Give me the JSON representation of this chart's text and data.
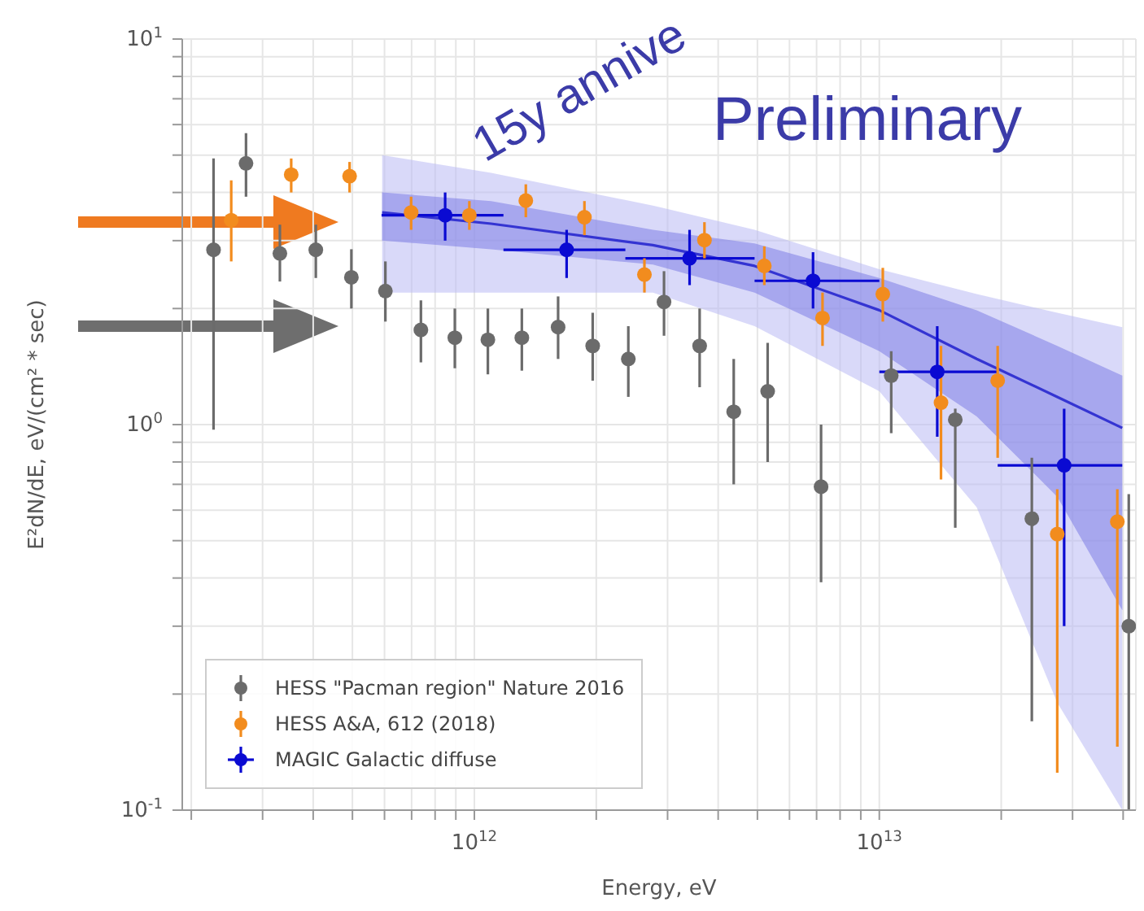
{
  "chart_data": {
    "type": "scatter",
    "xlabel": "Energy, eV",
    "ylabel": "E²dN/dE, eV/(cm² * sec)",
    "annotations": [
      "15y annive",
      "Preliminary"
    ],
    "log": "xy",
    "grid": true,
    "legend": "bottom left",
    "xlim": [
      190000000000.0,
      43000000000000.0
    ],
    "ylim": [
      0.1,
      10
    ],
    "xticks": [
      {
        "value": 200000000000.0,
        "label": null
      },
      {
        "value": 300000000000.0,
        "label": null
      },
      {
        "value": 400000000000.0,
        "label": null
      },
      {
        "value": 500000000000.0,
        "label": null
      },
      {
        "value": 600000000000.0,
        "label": null
      },
      {
        "value": 700000000000.0,
        "label": null
      },
      {
        "value": 800000000000.0,
        "label": null
      },
      {
        "value": 900000000000.0,
        "label": null
      },
      {
        "value": 1000000000000.0,
        "label": "10$^{12}$"
      },
      {
        "value": 2000000000000.0,
        "label": null
      },
      {
        "value": 3000000000000.0,
        "label": null
      },
      {
        "value": 4000000000000.0,
        "label": null
      },
      {
        "value": 5000000000000.0,
        "label": null
      },
      {
        "value": 6000000000000.0,
        "label": null
      },
      {
        "value": 7000000000000.0,
        "label": null
      },
      {
        "value": 8000000000000.0,
        "label": null
      },
      {
        "value": 9000000000000.0,
        "label": null
      },
      {
        "value": 10000000000000.0,
        "label": "10$^{13}$"
      },
      {
        "value": 20000000000000.0,
        "label": null
      },
      {
        "value": 30000000000000.0,
        "label": null
      },
      {
        "value": 40000000000000.0,
        "label": null
      }
    ],
    "yticks": [
      {
        "value": 0.1,
        "label": "10$^{-1}$"
      },
      {
        "value": 0.2,
        "label": null
      },
      {
        "value": 0.3,
        "label": null
      },
      {
        "value": 0.4,
        "label": null
      },
      {
        "value": 0.5,
        "label": null
      },
      {
        "value": 0.6,
        "label": null
      },
      {
        "value": 0.7,
        "label": null
      },
      {
        "value": 0.8,
        "label": null
      },
      {
        "value": 0.9,
        "label": null
      },
      {
        "value": 1,
        "label": "10$^{0}$"
      },
      {
        "value": 2,
        "label": null
      },
      {
        "value": 3,
        "label": null
      },
      {
        "value": 4,
        "label": null
      },
      {
        "value": 5,
        "label": null
      },
      {
        "value": 6,
        "label": null
      },
      {
        "value": 7,
        "label": null
      },
      {
        "value": 8,
        "label": null
      },
      {
        "value": 9,
        "label": null
      },
      {
        "value": 10,
        "label": "10$^{1}$"
      }
    ],
    "series": [
      {
        "name": "HESS \"Pacman region\" Nature 2016",
        "marker": "circle",
        "color": "#6b6b6b",
        "x": [
          227000000000.0,
          273000000000.0,
          331000000000.0,
          406000000000.0,
          497000000000.0,
          603000000000.0,
          738000000000.0,
          895000000000.0,
          1080000000000.0,
          1310000000000.0,
          1610000000000.0,
          1960000000000.0,
          2400000000000.0,
          2940000000000.0,
          3600000000000.0,
          4370000000000.0,
          5300000000000.0,
          7180000000000.0,
          10700000000000.0,
          15400000000000.0,
          23800000000000.0,
          41300000000000.0
        ],
        "values": [
          2.84,
          4.76,
          2.78,
          2.84,
          2.41,
          2.22,
          1.76,
          1.68,
          1.66,
          1.68,
          1.79,
          1.6,
          1.48,
          2.08,
          1.6,
          1.08,
          1.22,
          0.69,
          1.34,
          1.03,
          0.57,
          0.3
        ],
        "errors": [
          [
            0.97,
            4.9
          ],
          [
            3.9,
            5.7
          ],
          [
            2.35,
            3.3
          ],
          [
            2.4,
            3.3
          ],
          [
            2.0,
            2.85
          ],
          [
            1.85,
            2.65
          ],
          [
            1.45,
            2.1
          ],
          [
            1.4,
            2.0
          ],
          [
            1.35,
            2.0
          ],
          [
            1.38,
            2.0
          ],
          [
            1.48,
            2.15
          ],
          [
            1.3,
            1.95
          ],
          [
            1.18,
            1.8
          ],
          [
            1.7,
            2.5
          ],
          [
            1.25,
            2.0
          ],
          [
            0.7,
            1.48
          ],
          [
            0.8,
            1.63
          ],
          [
            0.39,
            1.0
          ],
          [
            0.95,
            1.55
          ],
          [
            0.54,
            1.1
          ],
          [
            0.17,
            0.82
          ],
          [
            0.1,
            0.66
          ]
        ]
      },
      {
        "name": "HESS A&A, 612 (2018)",
        "marker": "circle",
        "color": "#f28c1e",
        "x": [
          251000000000.0,
          353000000000.0,
          492000000000.0,
          698000000000.0,
          972000000000.0,
          1340000000000.0,
          1870000000000.0,
          2630000000000.0,
          3700000000000.0,
          5200000000000.0,
          7240000000000.0,
          10200000000000.0,
          14200000000000.0,
          19600000000000.0,
          27500000000000.0,
          38700000000000.0
        ],
        "values": [
          3.39,
          4.45,
          4.41,
          3.55,
          3.49,
          3.81,
          3.45,
          2.45,
          3.01,
          2.58,
          1.89,
          2.18,
          1.14,
          1.3,
          0.52,
          0.56
        ],
        "errors": [
          [
            2.65,
            4.3
          ],
          [
            4.0,
            4.9
          ],
          [
            4.0,
            4.8
          ],
          [
            3.2,
            3.9
          ],
          [
            3.2,
            3.8
          ],
          [
            3.45,
            4.2
          ],
          [
            3.1,
            3.8
          ],
          [
            2.2,
            2.7
          ],
          [
            2.7,
            3.35
          ],
          [
            2.3,
            2.9
          ],
          [
            1.6,
            2.2
          ],
          [
            1.85,
            2.55
          ],
          [
            0.72,
            1.6
          ],
          [
            0.82,
            1.6
          ],
          [
            0.125,
            0.68
          ],
          [
            0.146,
            0.68
          ]
        ]
      },
      {
        "name": "MAGIC Galactic diffuse",
        "marker": "circle",
        "color": "#0a0ad2",
        "x": [
          847000000000.0,
          1690000000000.0,
          3400000000000.0,
          6860000000000.0,
          13900000000000.0,
          28600000000000.0
        ],
        "values": [
          3.49,
          2.84,
          2.7,
          2.36,
          1.37,
          0.784
        ],
        "errors": [
          [
            3.0,
            4.0
          ],
          [
            2.4,
            3.2
          ],
          [
            2.3,
            3.2
          ],
          [
            2.0,
            2.8
          ],
          [
            0.93,
            1.8
          ],
          [
            0.3,
            1.1
          ]
        ],
        "xerrors": [
          [
            590000000000.0,
            1180000000000.0
          ],
          [
            1180000000000.0,
            2360000000000.0
          ],
          [
            2360000000000.0,
            4920000000000.0
          ],
          [
            4920000000000.0,
            10000000000000.0
          ],
          [
            10000000000000.0,
            19600000000000.0
          ],
          [
            19600000000000.0,
            39800000000000.0
          ]
        ]
      },
      {
        "type": "line",
        "color": "#b9b9f4",
        "x": [
          592000000000.0,
          1100000000000.0,
          2760000000000.0,
          4920000000000.0,
          10000000000000.0,
          17400000000000.0,
          27500000000000.0,
          39800000000000.0
        ],
        "values": [
          null,
          null,
          null,
          null,
          null,
          null,
          null,
          null
        ],
        "lower": [
          2.2,
          2.2,
          2.2,
          1.8,
          1.22,
          0.61,
          0.19,
          0.1
        ],
        "upper": [
          5.0,
          4.5,
          3.7,
          3.2,
          2.53,
          2.18,
          1.95,
          1.79
        ]
      },
      {
        "type": "line",
        "color": "#3434d2",
        "x": [
          592000000000.0,
          1100000000000.0,
          2760000000000.0,
          4920000000000.0,
          10000000000000.0,
          17400000000000.0,
          27500000000000.0,
          39800000000000.0
        ],
        "values": [
          3.55,
          3.32,
          2.92,
          2.58,
          1.98,
          1.48,
          1.18,
          0.98
        ],
        "lower": [
          3.0,
          2.85,
          2.6,
          2.2,
          1.55,
          1.05,
          0.65,
          0.33
        ],
        "upper": [
          4.0,
          3.8,
          3.2,
          2.95,
          2.4,
          1.98,
          1.6,
          1.34
        ]
      }
    ]
  }
}
